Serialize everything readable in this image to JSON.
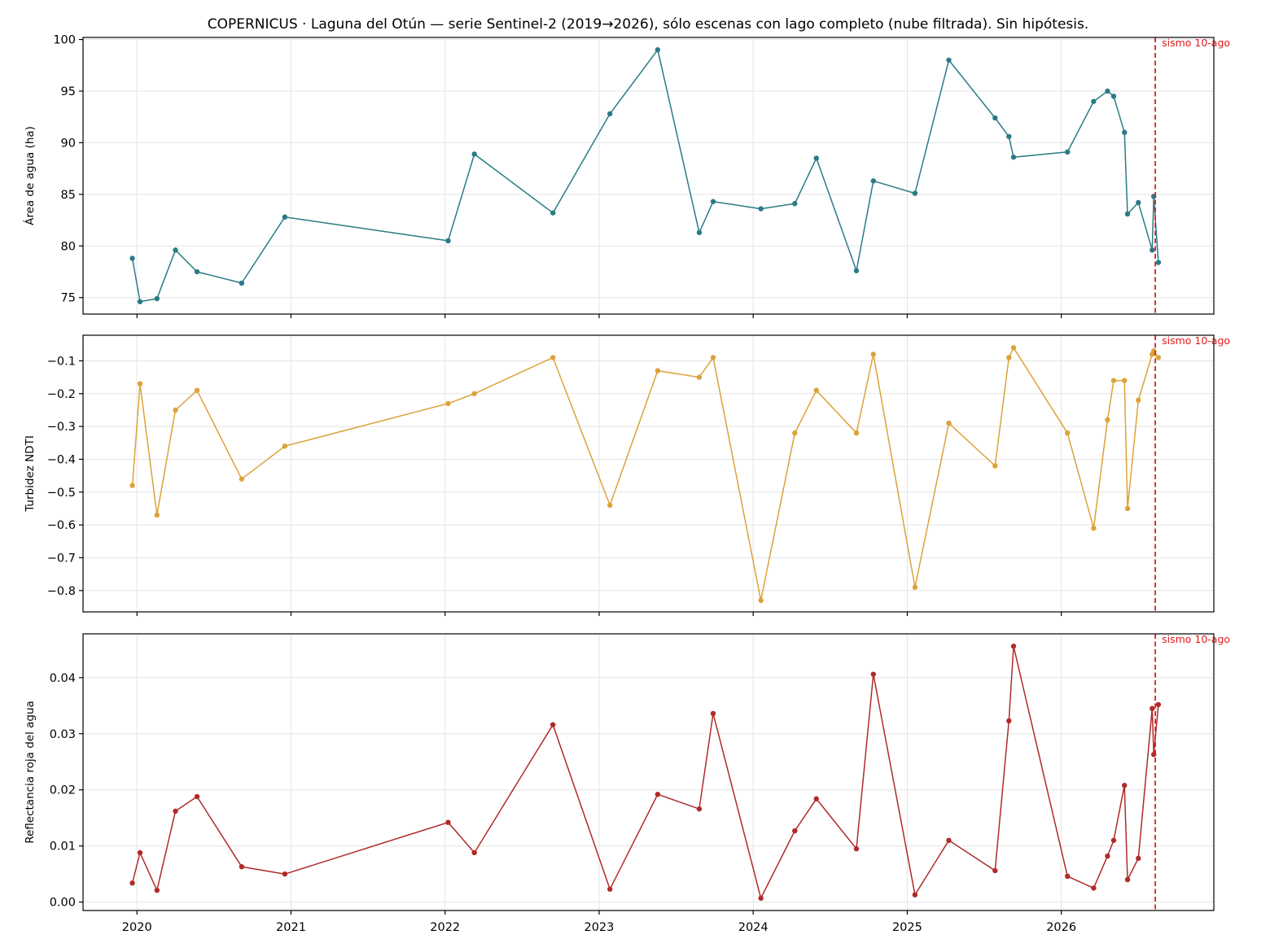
{
  "title": "COPERNICUS · Laguna del Otún — serie Sentinel-2 (2019→2026), sólo escenas con lago completo (nube filtrada). Sin hipótesis.",
  "event": {
    "label": "sismo 10-ago",
    "date": 2026.61,
    "color": "#e41a1c"
  },
  "x_ticks": [
    2020,
    2021,
    2022,
    2023,
    2024,
    2025,
    2026
  ],
  "x_range": [
    2019.65,
    2026.99
  ],
  "x": [
    2019.97,
    2020.02,
    2020.13,
    2020.25,
    2020.39,
    2020.68,
    2020.96,
    2022.02,
    2022.19,
    2022.7,
    2023.07,
    2023.38,
    2023.65,
    2023.74,
    2024.05,
    2024.27,
    2024.41,
    2024.67,
    2024.78,
    2025.05,
    2025.27,
    2025.57,
    2025.66,
    2025.69,
    2026.04,
    2026.21,
    2026.3,
    2026.34,
    2026.41,
    2026.43,
    2026.5,
    2026.59,
    2026.6,
    2026.63
  ],
  "chart_data": [
    {
      "type": "line",
      "ylabel": "Área de agua (ha)",
      "ylim": [
        73.4,
        100.2
      ],
      "yticks": [
        75,
        80,
        85,
        90,
        95,
        100
      ],
      "tick_decimals": 0,
      "color": "#2a7b86",
      "values": [
        78.8,
        74.6,
        74.9,
        79.6,
        77.5,
        76.4,
        82.8,
        80.5,
        88.9,
        83.2,
        92.8,
        99.0,
        81.3,
        84.3,
        83.6,
        84.1,
        88.5,
        77.6,
        86.3,
        85.1,
        98.0,
        92.4,
        90.6,
        88.6,
        89.1,
        94.0,
        95.0,
        94.5,
        91.0,
        83.1,
        84.2,
        79.6,
        84.8,
        78.4
      ]
    },
    {
      "type": "line",
      "ylabel": "Turbidez NDTI",
      "ylim": [
        -0.865,
        -0.022
      ],
      "yticks": [
        -0.8,
        -0.7,
        -0.6,
        -0.5,
        -0.4,
        -0.3,
        -0.2,
        -0.1
      ],
      "tick_decimals": 1,
      "color": "#dca23a",
      "values": [
        -0.48,
        -0.17,
        -0.57,
        -0.25,
        -0.19,
        -0.46,
        -0.36,
        -0.23,
        -0.2,
        -0.09,
        -0.54,
        -0.13,
        -0.15,
        -0.09,
        -0.83,
        -0.32,
        -0.19,
        -0.32,
        -0.08,
        -0.79,
        -0.29,
        -0.42,
        -0.09,
        -0.06,
        -0.32,
        -0.61,
        -0.28,
        -0.16,
        -0.16,
        -0.55,
        -0.22,
        -0.08,
        -0.07,
        -0.09
      ]
    },
    {
      "type": "line",
      "ylabel": "Reflectancia roja del agua",
      "ylim": [
        -0.0015,
        0.0478
      ],
      "yticks": [
        0.0,
        0.01,
        0.02,
        0.03,
        0.04
      ],
      "tick_decimals": 2,
      "color": "#b02a2a",
      "values": [
        0.0034,
        0.0088,
        0.0021,
        0.0162,
        0.0188,
        0.0063,
        0.005,
        0.0142,
        0.0088,
        0.0316,
        0.0023,
        0.0192,
        0.0166,
        0.0336,
        0.0007,
        0.0127,
        0.0184,
        0.0095,
        0.0406,
        0.0013,
        0.011,
        0.0056,
        0.0323,
        0.0456,
        0.0046,
        0.0025,
        0.0082,
        0.011,
        0.0208,
        0.004,
        0.0078,
        0.0345,
        0.0263,
        0.0352
      ]
    }
  ]
}
